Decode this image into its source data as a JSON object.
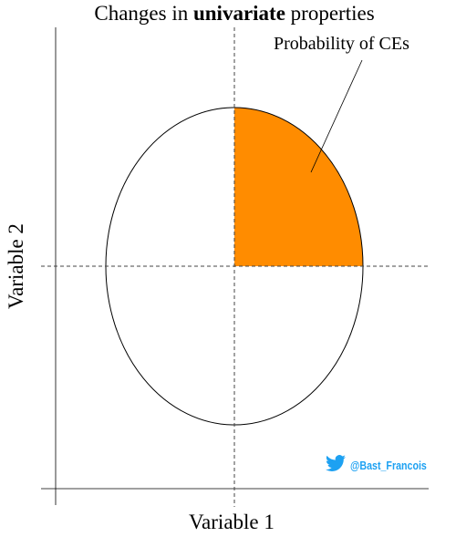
{
  "title": {
    "prefix": "Changes in ",
    "emphasis": "univariate",
    "suffix": " properties"
  },
  "annotation": "Probability of CEs",
  "x_axis_label": "Variable 1",
  "y_axis_label": "Variable 2",
  "credit": {
    "icon": "twitter-bird-icon",
    "handle": "@Bast_Francois"
  },
  "colors": {
    "highlight": "#ff8c00",
    "credit": "#1da1f2"
  }
}
